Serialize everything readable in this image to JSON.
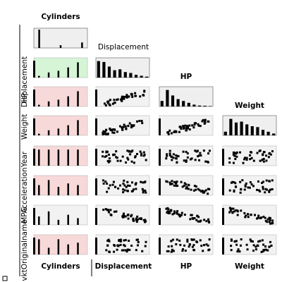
{
  "chart_data": {
    "type": "scatter",
    "subtype": "scatter-plot-matrix (lower triangle, histograms on diagonal)",
    "columns": [
      "Cylinders",
      "Displacement",
      "HP",
      "Weight"
    ],
    "row_labels": [
      "Cylinders",
      "Displacement",
      "HP",
      "Weight",
      "Year",
      "Acceleration",
      "MPG",
      "vktOriginalname"
    ],
    "bottom_labels": [
      "Cylinders",
      "Displacement",
      "HP",
      "Weight"
    ],
    "highlight_colors": {
      "histogram_bg": "#efefef",
      "positive_bg": "#d6f5d6",
      "negative_bg": "#f8d9d9",
      "neutral_bg": "#f2f2f2",
      "mark": "#000000"
    },
    "histograms": {
      "Cylinders": [
        1.0,
        0.0,
        0.15,
        0.0,
        0.3
      ],
      "Displacement": [
        0.9,
        0.85,
        0.6,
        0.4,
        0.45,
        0.3,
        0.25,
        0.15,
        0.1,
        0.05
      ],
      "HP": [
        0.3,
        0.9,
        0.6,
        0.4,
        0.3,
        0.2,
        0.1,
        0.05,
        0.04,
        0.02
      ],
      "Weight": [
        0.2,
        0.9,
        0.7,
        0.75,
        0.6,
        0.5,
        0.45,
        0.3,
        0.2,
        0.1
      ]
    },
    "cells": [
      {
        "row": "Displacement",
        "col": "Cylinders",
        "bg": "positive",
        "bars": [
          0.1,
          0.3,
          0.4,
          0.6,
          0.9
        ]
      },
      {
        "row": "HP",
        "col": "Cylinders",
        "bg": "negative",
        "bars": [
          0.1,
          0.3,
          0.4,
          0.6,
          0.9
        ]
      },
      {
        "row": "HP",
        "col": "Displacement",
        "bg": "neutral",
        "trend": "positive"
      },
      {
        "row": "Weight",
        "col": "Cylinders",
        "bg": "negative",
        "bars": [
          0.1,
          0.3,
          0.4,
          0.6,
          0.9
        ]
      },
      {
        "row": "Weight",
        "col": "Displacement",
        "bg": "neutral",
        "trend": "positive"
      },
      {
        "row": "Weight",
        "col": "HP",
        "bg": "neutral",
        "trend": "positive"
      },
      {
        "row": "Year",
        "col": "Cylinders",
        "bg": "negative",
        "bars": [
          0.95,
          0.95,
          0.95,
          0.95,
          0.95
        ]
      },
      {
        "row": "Year",
        "col": "Displacement",
        "bg": "neutral",
        "trend": "cloud"
      },
      {
        "row": "Year",
        "col": "HP",
        "bg": "neutral",
        "trend": "cloud"
      },
      {
        "row": "Year",
        "col": "Weight",
        "bg": "neutral",
        "trend": "cloud"
      },
      {
        "row": "Acceleration",
        "col": "Cylinders",
        "bg": "negative",
        "bars": [
          0.6,
          0.9,
          0.5,
          0.7,
          0.6
        ]
      },
      {
        "row": "Acceleration",
        "col": "Displacement",
        "bg": "neutral",
        "trend": "cloud"
      },
      {
        "row": "Acceleration",
        "col": "HP",
        "bg": "neutral",
        "trend": "negative"
      },
      {
        "row": "Acceleration",
        "col": "Weight",
        "bg": "neutral",
        "trend": "cloud"
      },
      {
        "row": "MPG",
        "col": "Cylinders",
        "bg": "neutral",
        "bars": [
          0.5,
          0.8,
          0.3,
          0.6,
          0.4
        ]
      },
      {
        "row": "MPG",
        "col": "Displacement",
        "bg": "neutral",
        "trend": "negative"
      },
      {
        "row": "MPG",
        "col": "HP",
        "bg": "neutral",
        "trend": "negative"
      },
      {
        "row": "MPG",
        "col": "Weight",
        "bg": "neutral",
        "trend": "negative"
      },
      {
        "row": "vktOriginalname",
        "col": "Cylinders",
        "bg": "negative",
        "bars": [
          0.9,
          0.4,
          0.9,
          0.6,
          0.7
        ]
      },
      {
        "row": "vktOriginalname",
        "col": "Displacement",
        "bg": "neutral",
        "trend": "bands"
      },
      {
        "row": "vktOriginalname",
        "col": "HP",
        "bg": "neutral",
        "trend": "bands"
      },
      {
        "row": "vktOriginalname",
        "col": "Weight",
        "bg": "neutral",
        "trend": "bands"
      }
    ]
  }
}
